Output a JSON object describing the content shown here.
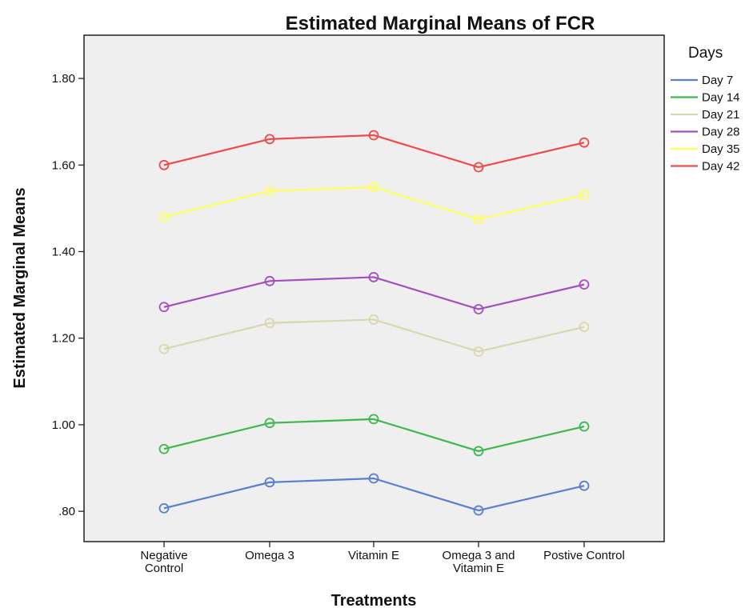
{
  "chart_data": {
    "type": "line",
    "title": "Estimated Marginal Means of FCR",
    "xlabel": "Treatments",
    "ylabel": "Estimated Marginal Means",
    "categories": [
      [
        "Negative",
        "Control"
      ],
      [
        "Omega 3"
      ],
      [
        "Vitamin E"
      ],
      [
        "Omega 3 and",
        "Vitamin E"
      ],
      [
        "Postive Control"
      ]
    ],
    "yticks": [
      0.8,
      1.0,
      1.2,
      1.4,
      1.6,
      1.8
    ],
    "ytick_labels": [
      ".80",
      "1.00",
      "1.20",
      "1.40",
      "1.60",
      "1.80"
    ],
    "ylim": [
      0.73,
      1.9
    ],
    "grid": false,
    "legend": {
      "title": "Days",
      "placement": "right"
    },
    "series": [
      {
        "name": "Day 7",
        "color": "#5a7fcf",
        "values": [
          0.807,
          0.867,
          0.876,
          0.802,
          0.859
        ]
      },
      {
        "name": "Day 14",
        "color": "#3fb84f",
        "values": [
          0.944,
          1.004,
          1.013,
          0.939,
          0.996
        ]
      },
      {
        "name": "Day 21",
        "color": "#d9d6b0",
        "values": [
          1.175,
          1.235,
          1.243,
          1.169,
          1.226
        ]
      },
      {
        "name": "Day 28",
        "color": "#a24fc0",
        "values": [
          1.272,
          1.332,
          1.341,
          1.267,
          1.324
        ]
      },
      {
        "name": "Day 35",
        "color": "#ffff5a",
        "values": [
          1.48,
          1.54,
          1.549,
          1.475,
          1.531
        ]
      },
      {
        "name": "Day 42",
        "color": "#ef4a4a",
        "values": [
          1.6,
          1.66,
          1.669,
          1.595,
          1.652
        ]
      }
    ]
  }
}
